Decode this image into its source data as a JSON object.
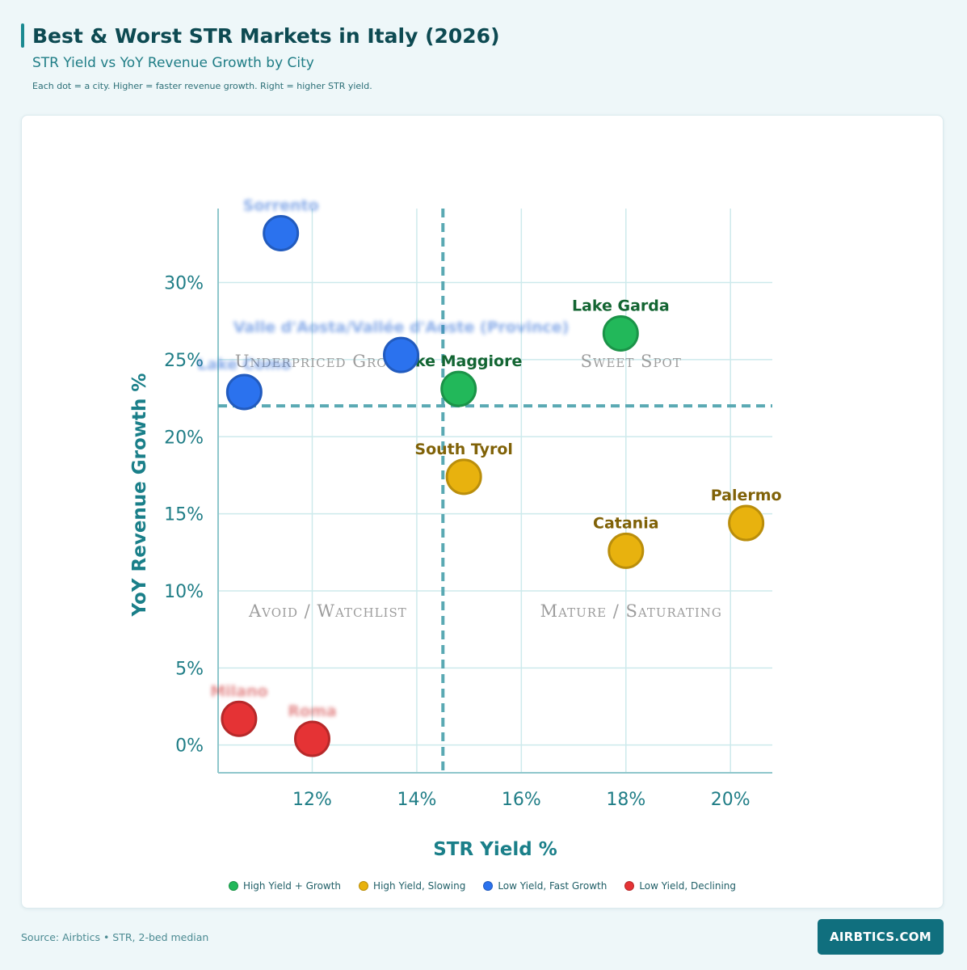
{
  "header": {
    "title": "Best & Worst STR Markets in Italy (2026)",
    "subtitle": "STR Yield vs YoY Revenue Growth by City",
    "note": "Each dot = a city. Higher = faster revenue growth. Right = higher STR yield."
  },
  "colors": {
    "green": "#22b85a",
    "amber": "#e8b20e",
    "blue": "#2b72ee",
    "red": "#e53335",
    "grid": "#cdeaec",
    "axis": "#8fc7cc",
    "threshold": "#5aa9b3"
  },
  "chart_data": {
    "type": "scatter",
    "xlabel": "STR Yield %",
    "ylabel": "YoY Revenue Growth %",
    "xlim": [
      10.2,
      20.8
    ],
    "ylim": [
      -1.8,
      34.8
    ],
    "xticks": [
      12,
      14,
      16,
      18,
      20
    ],
    "yticks": [
      0,
      5,
      10,
      15,
      20,
      25,
      30
    ],
    "xtick_labels": [
      "12%",
      "14%",
      "16%",
      "18%",
      "20%"
    ],
    "ytick_labels": [
      "0%",
      "5%",
      "10%",
      "15%",
      "20%",
      "25%",
      "30%"
    ],
    "thresholds": {
      "x": 14.5,
      "y": 22.0
    },
    "quadrants": [
      {
        "label": "Underpriced Growth",
        "x": 12.3,
        "y": 25.0
      },
      {
        "label": "Sweet Spot",
        "x": 18.1,
        "y": 25.0
      },
      {
        "label": "Avoid / Watchlist",
        "x": 12.3,
        "y": 8.8
      },
      {
        "label": "Mature / Saturating",
        "x": 18.1,
        "y": 8.8
      }
    ],
    "series": [
      {
        "name": "High Yield + Growth",
        "color_key": "green",
        "points": [
          {
            "label": "Lake Garda",
            "x": 17.9,
            "y": 26.7
          },
          {
            "label": "Lake Maggiore",
            "x": 14.8,
            "y": 23.1
          }
        ]
      },
      {
        "name": "High Yield, Slowing",
        "color_key": "amber",
        "points": [
          {
            "label": "South Tyrol",
            "x": 14.9,
            "y": 17.4
          },
          {
            "label": "Catania",
            "x": 18.0,
            "y": 12.6
          },
          {
            "label": "Palermo",
            "x": 20.3,
            "y": 14.4
          }
        ]
      },
      {
        "name": "Low Yield, Fast Growth",
        "color_key": "blue",
        "points": [
          {
            "label": "Sorrento",
            "x": 11.4,
            "y": 33.2
          },
          {
            "label": "Valle d'Aosta/Vallée d'Aoste (Province)",
            "x": 13.7,
            "y": 25.3
          },
          {
            "label": "Lake Como",
            "x": 10.7,
            "y": 22.9
          }
        ]
      },
      {
        "name": "Low Yield, Declining",
        "color_key": "red",
        "points": [
          {
            "label": "Milano",
            "x": 10.6,
            "y": 1.7
          },
          {
            "label": "Roma",
            "x": 12.0,
            "y": 0.4
          }
        ]
      }
    ]
  },
  "footer": {
    "source": "Source: Airbtics • STR, 2-bed median",
    "brand": "AIRBTICS.COM"
  }
}
